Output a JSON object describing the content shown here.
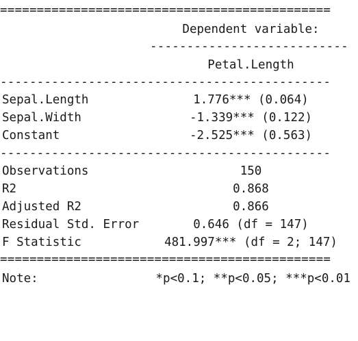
{
  "rules": {
    "double": "=============================================",
    "single": "---------------------------------------------",
    "header_single": "-----------------------------"
  },
  "header": {
    "caption": "Dependent variable:",
    "dependent_var": "Petal.Length"
  },
  "coefficients": [
    {
      "name": "Sepal.Length",
      "value": "1.776*** (0.064)"
    },
    {
      "name": "Sepal.Width",
      "value": "-1.339*** (0.122)"
    },
    {
      "name": "Constant",
      "value": "-2.525*** (0.563)"
    }
  ],
  "stats": [
    {
      "name": "Observations",
      "value": "150"
    },
    {
      "name": "R2",
      "value": "0.868"
    },
    {
      "name": "Adjusted R2",
      "value": "0.866"
    },
    {
      "name": "Residual Std. Error",
      "value": "0.646 (df = 147)"
    },
    {
      "name": "F Statistic",
      "value": "481.997*** (df = 2; 147)"
    }
  ],
  "note": {
    "label": "Note:",
    "text": "*p<0.1; **p<0.05; ***p<0.01"
  }
}
